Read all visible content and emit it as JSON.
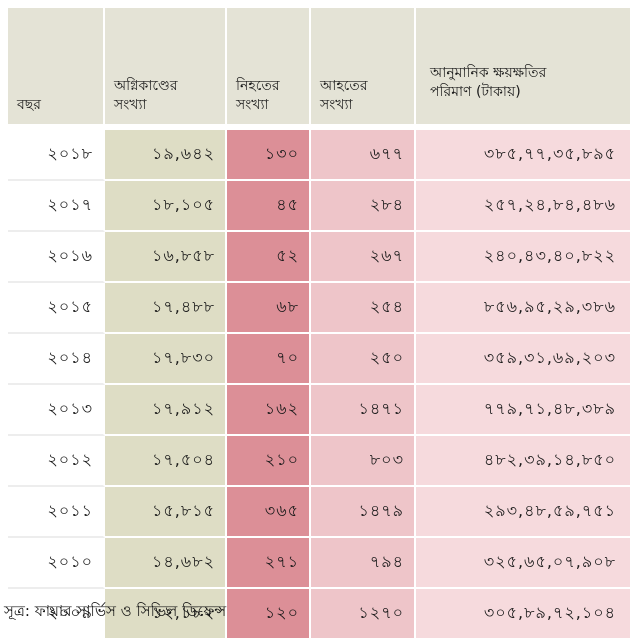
{
  "table": {
    "headers": [
      {
        "lines": [
          "বছর"
        ]
      },
      {
        "lines": [
          "অগ্নিকাণ্ডের",
          "সংখ্যা"
        ]
      },
      {
        "lines": [
          "নিহতের",
          "সংখ্যা"
        ]
      },
      {
        "lines": [
          "আহতের",
          "সংখ্যা"
        ]
      },
      {
        "lines": [
          "আনুমানিক ক্ষয়ক্ষতির",
          "পরিমাণ (টাকায়)"
        ]
      }
    ],
    "rows": [
      [
        "২০১৮",
        "১৯,৬৪২",
        "১৩০",
        "৬৭৭",
        "৩৮৫,৭৭,৩৫,৮৯৫"
      ],
      [
        "২০১৭",
        "১৮,১০৫",
        "৪৫",
        "২৮৪",
        "২৫৭,২৪,৮৪,৪৮৬"
      ],
      [
        "২০১৬",
        "১৬,৮৫৮",
        "৫২",
        "২৬৭",
        "২৪০,৪৩,৪০,৮২২"
      ],
      [
        "২০১৫",
        "১৭,৪৮৮",
        "৬৮",
        "২৫৪",
        "৮৫৬,৯৫,২৯,৩৮৬"
      ],
      [
        "২০১৪",
        "১৭,৮৩০",
        "৭০",
        "২৫০",
        "৩৫৯,৩১,৬৯,২০৩"
      ],
      [
        "২০১৩",
        "১৭,৯১২",
        "১৬২",
        "১৪৭১",
        "৭৭৯,৭১,৪৮,৩৮৯"
      ],
      [
        "২০১২",
        "১৭,৫০৪",
        "২১০",
        "৮০৩",
        "৪৮২,৩৯,১৪,৮৫০"
      ],
      [
        "২০১১",
        "১৫,৮১৫",
        "৩৬৫",
        "১৪৭৯",
        "২৯৩,৪৮,৫৯,৭৫১"
      ],
      [
        "২০১০",
        "১৪,৬৮২",
        "২৭১",
        "৭৯৪",
        "৩২৫,৬৫,০৭,৯০৮"
      ],
      [
        "২০০৯",
        "১২,১৮২",
        "১২০",
        "১২৭০",
        "৩০৫,৮৯,৭২,১০৪"
      ]
    ]
  },
  "source": "সূত্র: ফায়ার সার্ভিস ও সিভিল ডিফেন্স",
  "colors": {
    "header_bg": "#e4e3d6",
    "col_fires": "#deddc5",
    "col_deaths": "#dc8f97",
    "col_injured": "#eec5c9",
    "col_loss": "#f6dadd"
  }
}
